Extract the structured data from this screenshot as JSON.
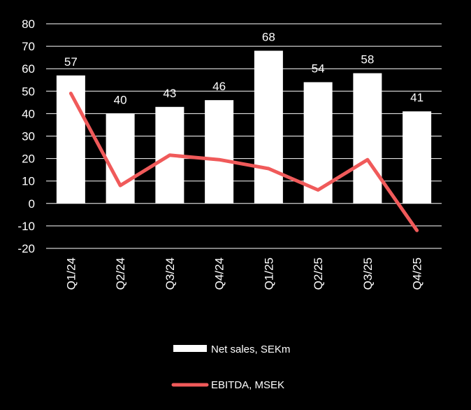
{
  "chart_data": {
    "type": "bar",
    "categories": [
      "Q1/24",
      "Q2/24",
      "Q3/24",
      "Q4/24",
      "Q1/25",
      "Q2/25",
      "Q3/25",
      "Q4/25"
    ],
    "series": [
      {
        "name": "Net sales, SEKm",
        "kind": "bar",
        "color": "#ffffff",
        "values": [
          57,
          40,
          43,
          46,
          68,
          54,
          58,
          41
        ],
        "data_labels": [
          "57",
          "40",
          "43",
          "46",
          "68",
          "54",
          "58",
          "41"
        ]
      },
      {
        "name": "EBITDA, MSEK",
        "kind": "line",
        "color": "#f05a5a",
        "values": [
          49,
          8,
          21.5,
          19.5,
          15.5,
          6,
          19.5,
          -12
        ]
      }
    ],
    "ylim": [
      -20,
      80
    ],
    "yticks": [
      80,
      70,
      60,
      50,
      40,
      30,
      20,
      10,
      0,
      -10,
      -20
    ],
    "grid": true,
    "legend_position": "bottom",
    "background": "#000000",
    "gridline_color": "#ffffff"
  }
}
